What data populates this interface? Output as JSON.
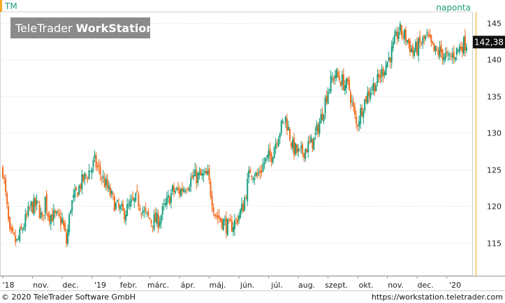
{
  "header": {
    "symbol": "TM",
    "period": "naponta",
    "brand_regular": "TeleTrader ",
    "brand_bold": "WorkStation"
  },
  "footer": {
    "copyright": "© 2020 TeleTrader Software GmbH",
    "url": "https://workstation.teletrader.com"
  },
  "colors": {
    "up": "#1a9e7e",
    "down": "#f26b1d",
    "grid": "#d8d8d8",
    "last_price_bg": "#111111",
    "accent": "#f5a623"
  },
  "chart_data": {
    "type": "candlestick",
    "last_price": 142.38,
    "last_price_label": "142,38",
    "y_ticks": [
      115,
      120,
      125,
      130,
      135,
      140,
      145
    ],
    "ylim": [
      110.5,
      146.5
    ],
    "x_labels": [
      "'18",
      "nov.",
      "dec.",
      "'19",
      "febr.",
      "márc.",
      "ápr.",
      "máj.",
      "jún.",
      "júl.",
      "aug.",
      "szept.",
      "okt.",
      "nov.",
      "dec.",
      "'20"
    ],
    "x_label_positions": [
      0,
      21,
      42,
      63,
      83,
      104,
      125,
      146,
      167,
      188,
      209,
      230,
      251,
      272,
      293,
      314
    ],
    "x_range": [
      0,
      328
    ],
    "series_keypoints": [
      [
        0,
        125
      ],
      [
        5,
        116
      ],
      [
        10,
        115
      ],
      [
        20,
        120
      ],
      [
        25,
        120
      ],
      [
        28,
        118
      ],
      [
        30,
        121
      ],
      [
        32,
        119
      ],
      [
        42,
        118
      ],
      [
        45,
        115
      ],
      [
        48,
        120
      ],
      [
        55,
        123
      ],
      [
        62,
        125
      ],
      [
        65,
        126
      ],
      [
        70,
        124
      ],
      [
        75,
        122
      ],
      [
        80,
        120
      ],
      [
        85,
        119
      ],
      [
        90,
        120
      ],
      [
        95,
        121
      ],
      [
        100,
        119
      ],
      [
        105,
        118
      ],
      [
        110,
        118
      ],
      [
        115,
        120
      ],
      [
        120,
        122
      ],
      [
        125,
        122
      ],
      [
        130,
        123
      ],
      [
        135,
        124
      ],
      [
        140,
        124
      ],
      [
        145,
        124
      ],
      [
        150,
        119
      ],
      [
        155,
        118
      ],
      [
        160,
        117
      ],
      [
        165,
        118
      ],
      [
        170,
        120
      ],
      [
        175,
        125
      ],
      [
        180,
        124
      ],
      [
        185,
        126
      ],
      [
        190,
        127
      ],
      [
        195,
        130
      ],
      [
        200,
        132
      ],
      [
        205,
        128
      ],
      [
        210,
        127
      ],
      [
        215,
        128
      ],
      [
        220,
        129
      ],
      [
        225,
        132
      ],
      [
        230,
        136
      ],
      [
        235,
        138
      ],
      [
        240,
        137
      ],
      [
        245,
        136
      ],
      [
        250,
        131
      ],
      [
        255,
        134
      ],
      [
        260,
        136
      ],
      [
        265,
        137
      ],
      [
        270,
        139
      ],
      [
        275,
        141
      ],
      [
        280,
        144
      ],
      [
        285,
        143
      ],
      [
        290,
        141
      ],
      [
        295,
        142
      ],
      [
        300,
        143
      ],
      [
        305,
        141
      ],
      [
        310,
        141
      ],
      [
        315,
        140
      ],
      [
        320,
        141
      ],
      [
        325,
        142
      ],
      [
        328,
        142.38
      ]
    ],
    "grid": "horizontal"
  }
}
